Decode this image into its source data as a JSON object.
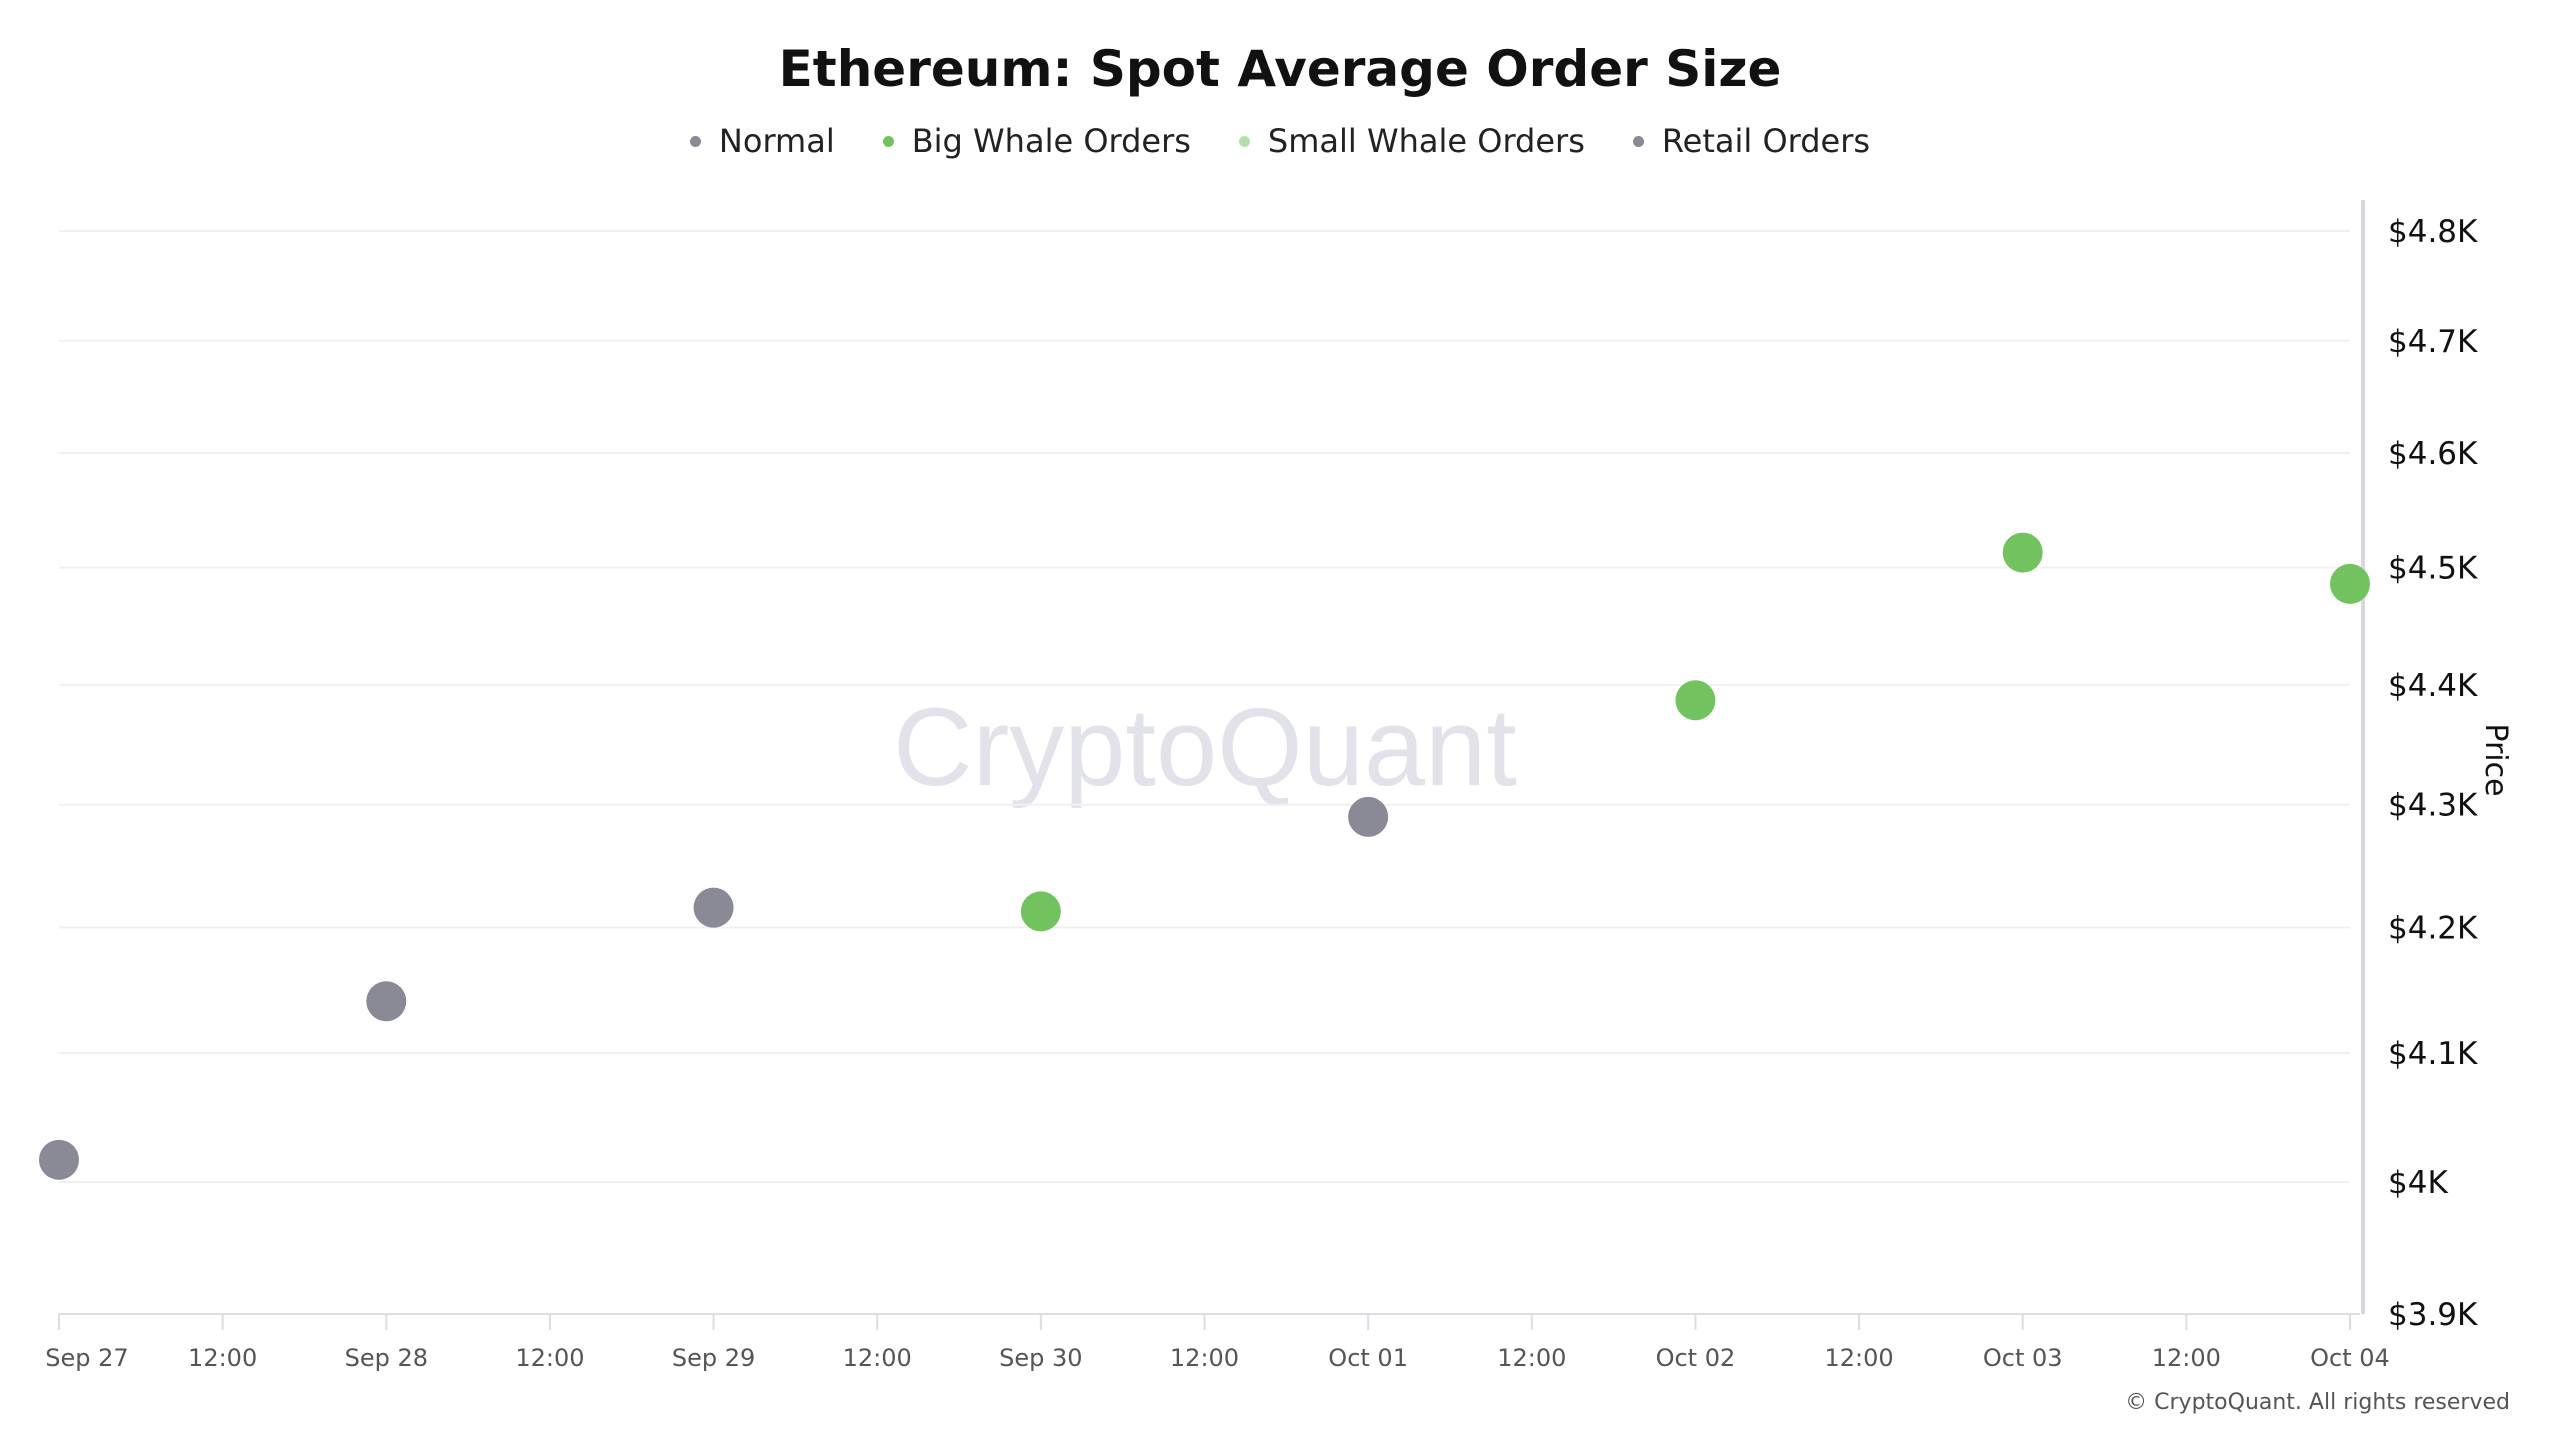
{
  "chart_data": {
    "type": "scatter",
    "title": "Ethereum: Spot Average Order Size",
    "ylabel": "Price",
    "xlabel": "",
    "yscale": "log",
    "ylim": [
      3900,
      4800
    ],
    "y_ticks": [
      {
        "value": 4800,
        "label": "$4.8K"
      },
      {
        "value": 4700,
        "label": "$4.7K"
      },
      {
        "value": 4600,
        "label": "$4.6K"
      },
      {
        "value": 4500,
        "label": "$4.5K"
      },
      {
        "value": 4400,
        "label": "$4.4K"
      },
      {
        "value": 4300,
        "label": "$4.3K"
      },
      {
        "value": 4200,
        "label": "$4.2K"
      },
      {
        "value": 4100,
        "label": "$4.1K"
      },
      {
        "value": 4000,
        "label": "$4K"
      },
      {
        "value": 3900,
        "label": "$3.9K"
      }
    ],
    "x_ticks": [
      "Sep 27",
      "12:00",
      "Sep 28",
      "12:00",
      "Sep 29",
      "12:00",
      "Sep 30",
      "12:00",
      "Oct 01",
      "12:00",
      "Oct 02",
      "12:00",
      "Oct 03",
      "12:00",
      "Oct 04"
    ],
    "grid": true,
    "legend_placement": "top-center",
    "legend": [
      {
        "name": "Normal",
        "color": "#8a8996"
      },
      {
        "name": "Big Whale Orders",
        "color": "#72c35f"
      },
      {
        "name": "Small Whale Orders",
        "color": "#b5dfa9"
      },
      {
        "name": "Retail Orders",
        "color": "#8a8996"
      }
    ],
    "points": [
      {
        "date": "Sep 27",
        "price": 4017,
        "category": "Normal"
      },
      {
        "date": "Sep 28",
        "price": 4141,
        "category": "Normal"
      },
      {
        "date": "Sep 29",
        "price": 4216,
        "category": "Normal"
      },
      {
        "date": "Sep 30",
        "price": 4213,
        "category": "Big Whale Orders"
      },
      {
        "date": "Oct 01",
        "price": 4290,
        "category": "Normal"
      },
      {
        "date": "Oct 02",
        "price": 4387,
        "category": "Big Whale Orders"
      },
      {
        "date": "Oct 03",
        "price": 4513,
        "category": "Big Whale Orders"
      },
      {
        "date": "Oct 04",
        "price": 4486,
        "category": "Big Whale Orders"
      }
    ]
  },
  "watermark": "CryptoQuant",
  "copyright": "© CryptoQuant. All rights reserved"
}
